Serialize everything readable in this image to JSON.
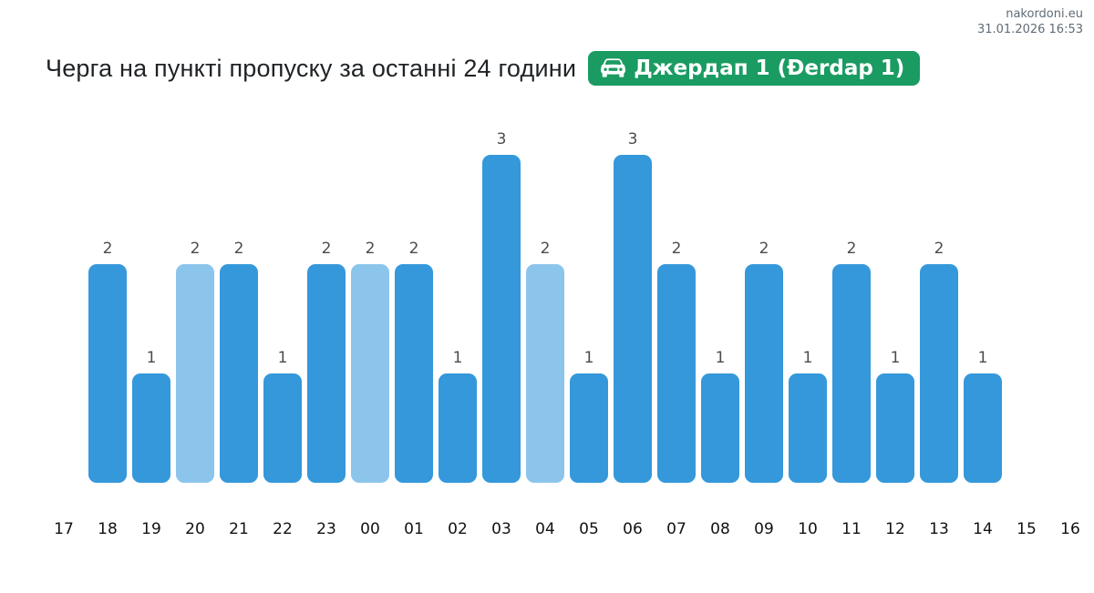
{
  "meta": {
    "site": "nakordoni.eu",
    "timestamp": "31.01.2026 16:53"
  },
  "header": {
    "title": "Черга на пункті пропуску за останні 24 години",
    "badge": {
      "label": "Джердап 1 (Đerdap 1)",
      "icon": "car-front-icon",
      "color": "#1a9b62"
    }
  },
  "chart_data": {
    "type": "bar",
    "title": "Черга на пункті пропуску за останні 24 години",
    "xlabel": "",
    "ylabel": "",
    "ylim": [
      0,
      3
    ],
    "grid": false,
    "legend": false,
    "data_labels": true,
    "categories": [
      "17",
      "18",
      "19",
      "20",
      "21",
      "22",
      "23",
      "00",
      "01",
      "02",
      "03",
      "04",
      "05",
      "06",
      "07",
      "08",
      "09",
      "10",
      "11",
      "12",
      "13",
      "14",
      "15",
      "16"
    ],
    "values": [
      null,
      2,
      1,
      2,
      2,
      1,
      2,
      2,
      2,
      1,
      3,
      2,
      1,
      3,
      2,
      1,
      2,
      1,
      2,
      1,
      2,
      1,
      null,
      null
    ],
    "light_value_categories": [
      "20",
      "00",
      "04"
    ],
    "colors": {
      "bar": "#3498db",
      "bar_light": "#8cc5ec",
      "value_label": "#4c4c4c",
      "axis_label": "#121212"
    }
  }
}
